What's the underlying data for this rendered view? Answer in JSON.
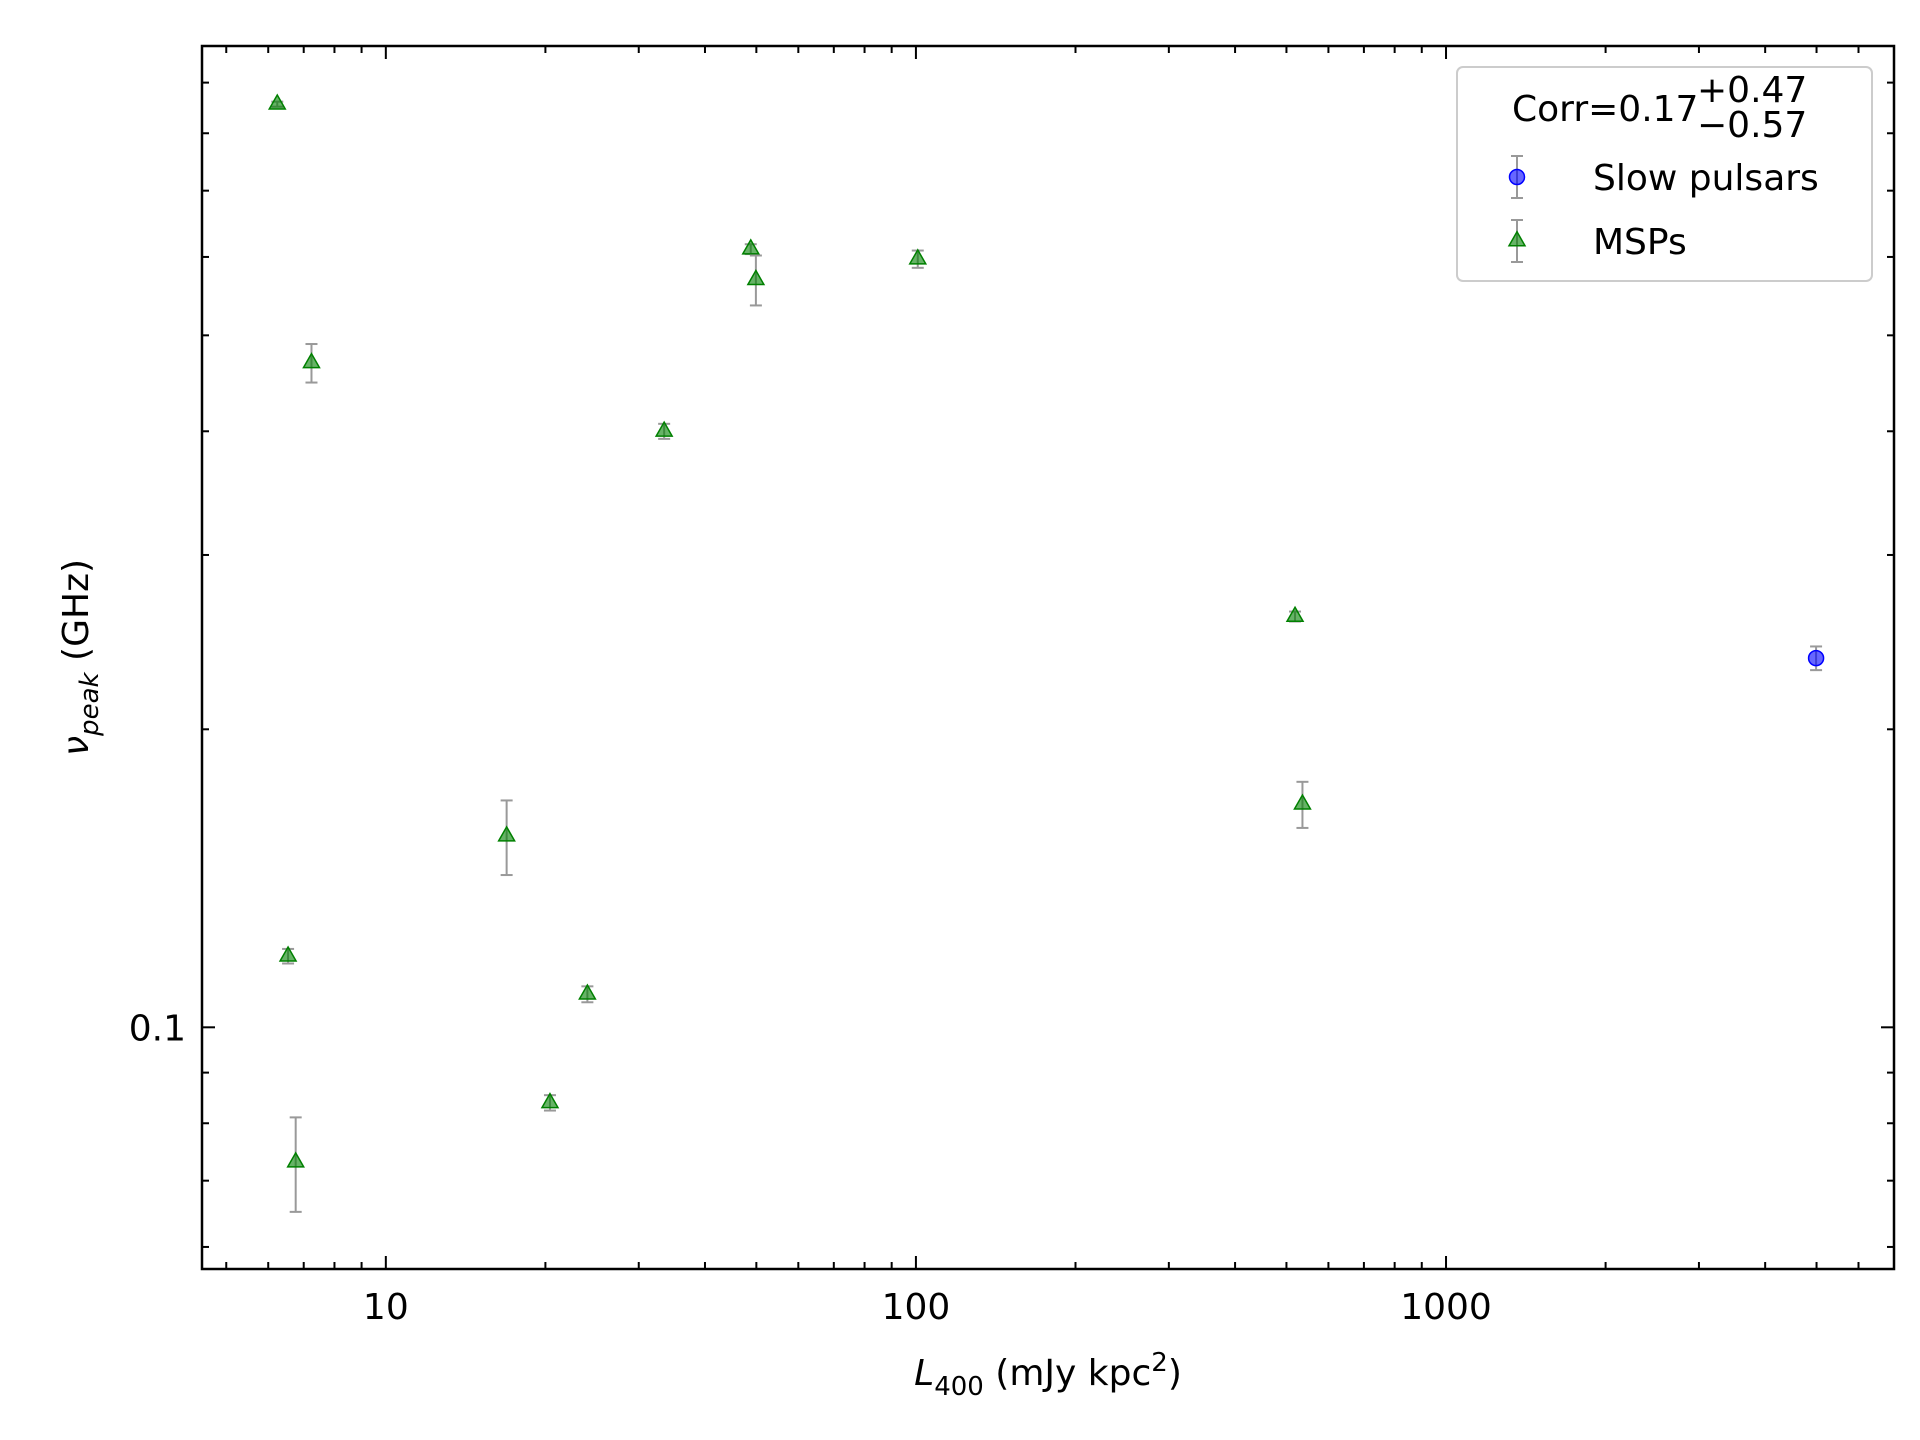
{
  "chart_data": {
    "type": "scatter",
    "xlabel": [
      "L",
      "400",
      " (mJy kpc",
      "2",
      ")"
    ],
    "ylabel": [
      "ν",
      "peak",
      " (GHz)"
    ],
    "xscale": "log",
    "yscale": "log",
    "xlim": [
      4.5,
      7000
    ],
    "ylim": [
      0.057,
      0.98
    ],
    "xticks": [
      10,
      100,
      1000
    ],
    "xminorticks": [
      5,
      6,
      7,
      8,
      9,
      20,
      30,
      40,
      50,
      60,
      70,
      80,
      90,
      200,
      300,
      400,
      500,
      600,
      700,
      800,
      900,
      2000,
      3000,
      4000,
      5000,
      6000
    ],
    "yticks": [
      0.1
    ],
    "yminorticks": [
      0.06,
      0.07,
      0.08,
      0.09,
      0.2,
      0.3,
      0.4,
      0.5,
      0.6,
      0.7,
      0.8,
      0.9
    ],
    "legend_position": "upper right",
    "legend_title": "Corr=0.17",
    "legend_title_sup": "+0.47",
    "legend_title_sub": "−0.57",
    "errorbar_color": "#999999",
    "series": [
      {
        "name": "Slow pulsars",
        "color": "#0000ff",
        "marker": "circle",
        "x": [
          4990
        ],
        "values": [
          0.236
        ],
        "errors": [
          0.0065
        ]
      },
      {
        "name": "MSPs",
        "color": "#008000",
        "marker": "triangle",
        "x": [
          6.24,
          7.24,
          6.54,
          6.76,
          16.9,
          20.4,
          24.0,
          33.5,
          48.8,
          49.9,
          100.8,
          519,
          536
        ],
        "values": [
          0.856,
          0.469,
          0.118,
          0.0731,
          0.156,
          0.0839,
          0.108,
          0.4,
          0.611,
          0.569,
          0.597,
          0.26,
          0.168
        ],
        "errors": [
          0.005,
          0.021,
          0.002,
          0.008,
          0.0135,
          0.0015,
          0.002,
          0.007,
          0.007,
          0.033,
          0.012,
          0.003,
          0.009
        ]
      }
    ]
  }
}
